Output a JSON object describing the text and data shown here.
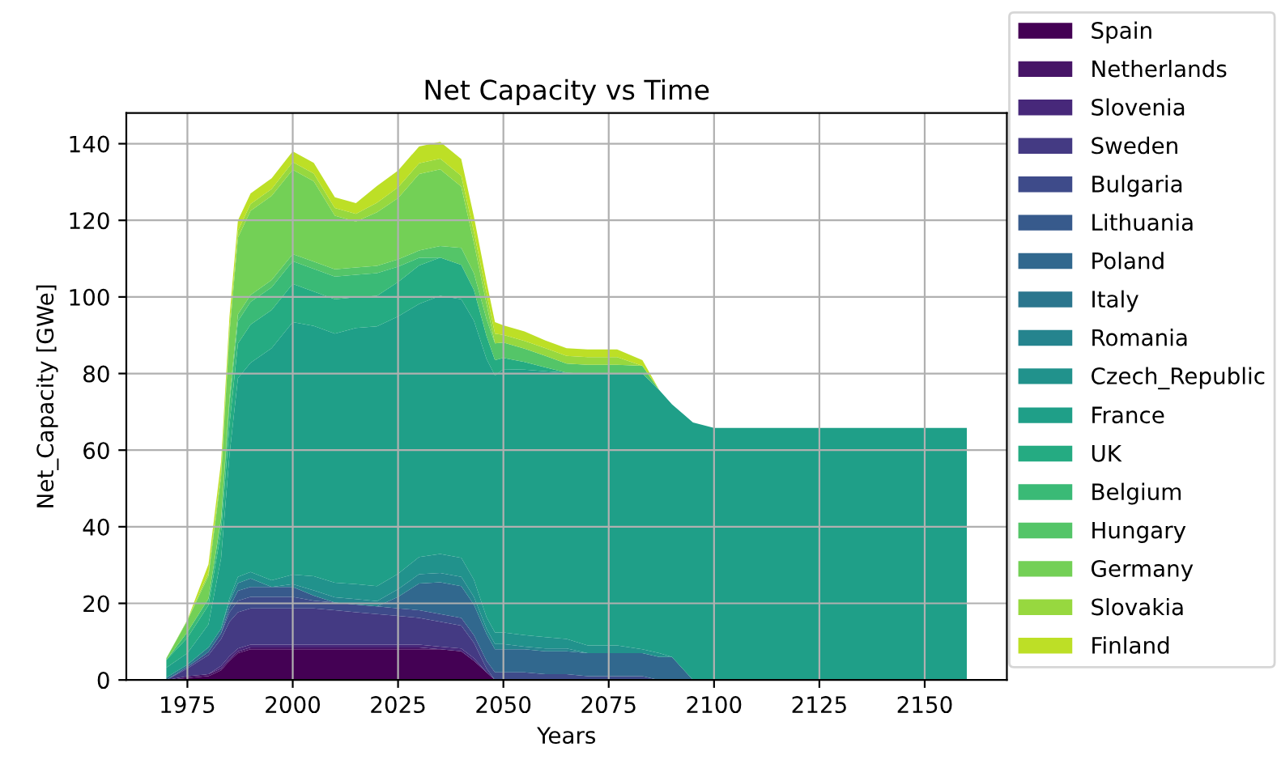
{
  "chart_data": {
    "type": "area",
    "stacked": true,
    "title": "Net Capacity vs Time",
    "xlabel": "Years",
    "ylabel": "Net_Capacity [GWe]",
    "x": [
      1970,
      1975,
      1980,
      1983,
      1985,
      1987,
      1990,
      1995,
      2000,
      2005,
      2010,
      2015,
      2020,
      2025,
      2030,
      2035,
      2040,
      2043,
      2046,
      2048,
      2050,
      2055,
      2060,
      2065,
      2070,
      2077,
      2083,
      2087,
      2090,
      2095,
      2100,
      2160
    ],
    "series": [
      {
        "name": "Spain",
        "color": "#440154",
        "values": [
          0,
          0.5,
          1,
          2.5,
          5,
          7,
          8,
          8,
          8,
          8,
          8,
          8,
          8,
          8,
          8,
          8,
          7.5,
          5,
          2,
          0,
          0,
          0,
          0,
          0,
          0,
          0,
          0,
          0,
          0,
          0,
          0,
          0
        ]
      },
      {
        "name": "Netherlands",
        "color": "#471567",
        "values": [
          0,
          0.5,
          0.5,
          0.5,
          0.5,
          0.5,
          0.5,
          0.5,
          0.5,
          0.5,
          0.5,
          0.5,
          0.5,
          0.5,
          0.5,
          0,
          0,
          0,
          0,
          0,
          0,
          0,
          0,
          0,
          0,
          0,
          0,
          0,
          0,
          0,
          0,
          0
        ]
      },
      {
        "name": "Slovenia",
        "color": "#47287a",
        "values": [
          0,
          0,
          0,
          0.7,
          0.7,
          0.7,
          0.7,
          0.7,
          0.7,
          0.7,
          0.7,
          0.7,
          0.7,
          0.7,
          0.7,
          0.7,
          0.7,
          0.7,
          0,
          0,
          0,
          0,
          0,
          0,
          0,
          0,
          0,
          0,
          0,
          0,
          0,
          0
        ]
      },
      {
        "name": "Sweden",
        "color": "#443a83",
        "values": [
          0,
          2,
          5,
          7,
          9,
          9.5,
          9.5,
          9.5,
          9.5,
          9.5,
          9,
          8.5,
          8,
          7.5,
          7,
          6.5,
          6,
          4,
          1,
          0,
          0,
          0,
          0,
          0,
          0,
          0,
          0,
          0,
          0,
          0,
          0,
          0
        ]
      },
      {
        "name": "Bulgaria",
        "color": "#3e4b8a",
        "values": [
          0,
          0.4,
          0.8,
          1.5,
          2.5,
          3,
          3,
          3,
          3,
          2,
          2,
          2,
          2,
          2,
          2,
          2,
          2,
          2,
          2,
          2,
          2,
          2,
          1.5,
          1.5,
          1,
          1,
          1,
          0,
          0,
          0,
          0,
          0
        ]
      },
      {
        "name": "Lithuania",
        "color": "#375a8c",
        "values": [
          0,
          0,
          0,
          0,
          1.3,
          2.6,
          2.6,
          2.6,
          2.6,
          1.3,
          0,
          0,
          0,
          0,
          0,
          0,
          0,
          0,
          0,
          0,
          0,
          0,
          0,
          0,
          0,
          0,
          0,
          0,
          0,
          0,
          0,
          0
        ]
      },
      {
        "name": "Poland",
        "color": "#31688e",
        "values": [
          0,
          0,
          0,
          0,
          0,
          0,
          0,
          0,
          0,
          0,
          0,
          0,
          0,
          3,
          7,
          8.3,
          8.3,
          8,
          7,
          6,
          6,
          6,
          6,
          6,
          6,
          6,
          6,
          6,
          6,
          0,
          0,
          0
        ]
      },
      {
        "name": "Italy",
        "color": "#2b768e",
        "values": [
          0.6,
          0.6,
          1.2,
          1.2,
          1.5,
          2,
          2.2,
          0,
          0,
          0,
          0,
          0,
          0,
          0,
          0,
          0,
          0,
          0,
          0,
          0,
          0,
          0,
          0,
          0,
          0,
          0,
          0,
          0,
          0,
          0,
          0,
          0
        ]
      },
      {
        "name": "Romania",
        "color": "#25848e",
        "values": [
          0,
          0,
          0,
          0,
          0,
          0,
          0,
          0,
          0.7,
          1.4,
          1.4,
          1.4,
          1.4,
          2,
          2.4,
          2.4,
          2.4,
          2,
          1.4,
          1.4,
          1.4,
          0.7,
          0.7,
          0.7,
          0,
          0,
          0,
          0,
          0,
          0,
          0,
          0
        ]
      },
      {
        "name": "Czech_Republic",
        "color": "#21928c",
        "values": [
          0,
          0,
          0,
          0,
          0.8,
          1.6,
          1.7,
          1.7,
          2.5,
          3.7,
          3.8,
          3.9,
          3.9,
          4,
          4.5,
          5,
          5,
          4.5,
          3,
          3,
          3,
          3,
          3,
          2.5,
          2,
          2,
          1,
          1,
          0,
          0,
          0,
          0
        ]
      },
      {
        "name": "France",
        "color": "#1f9f88",
        "values": [
          2.6,
          3,
          6,
          18.4,
          37.5,
          51.9,
          54.6,
          60.6,
          65.9,
          65.3,
          65,
          66.9,
          67.8,
          67.2,
          66.1,
          67.4,
          67.5,
          67.6,
          67.4,
          67.1,
          68.7,
          69.3,
          69.4,
          69.5,
          70.9,
          70.9,
          72,
          68.7,
          66,
          67.2,
          65.8,
          65.8
        ]
      },
      {
        "name": "UK",
        "color": "#25ab82",
        "values": [
          2,
          4,
          5,
          7,
          8,
          9,
          10,
          10,
          10,
          9,
          9,
          8,
          8,
          9,
          10,
          10,
          9,
          8,
          6,
          4,
          3,
          2,
          1,
          0,
          0,
          0,
          0,
          0,
          0,
          0,
          0,
          0
        ]
      },
      {
        "name": "Belgium",
        "color": "#3aba76",
        "values": [
          0,
          1.5,
          1.7,
          3,
          5.5,
          5.9,
          5.9,
          5.9,
          5.9,
          5.9,
          5.9,
          5.9,
          5.9,
          4,
          2,
          0,
          0,
          0,
          0,
          0,
          0,
          0,
          0,
          0,
          0,
          0,
          0,
          0,
          0,
          0,
          0,
          0
        ]
      },
      {
        "name": "Hungary",
        "color": "#54c568",
        "values": [
          0,
          0,
          0,
          0.4,
          1.4,
          1.8,
          1.8,
          1.9,
          1.9,
          1.9,
          1.9,
          1.9,
          1.9,
          1.9,
          1.9,
          3,
          4.4,
          4.4,
          4.4,
          4.4,
          4,
          3.5,
          3,
          2.4,
          2.4,
          2.4,
          2,
          0,
          0,
          0,
          0,
          0
        ]
      },
      {
        "name": "Germany",
        "color": "#73d056",
        "values": [
          0.5,
          3,
          6,
          11,
          17,
          20,
          22,
          22,
          22,
          21,
          14,
          12,
          14,
          16,
          20,
          20,
          16,
          8,
          4,
          0,
          0,
          0,
          0,
          0,
          0,
          0,
          0,
          0,
          0,
          0,
          0,
          0
        ]
      },
      {
        "name": "Slovakia",
        "color": "#97d83f",
        "values": [
          0,
          0.2,
          0.8,
          1.2,
          1.6,
          1.8,
          1.8,
          1.8,
          2,
          2,
          2,
          2,
          2.5,
          2.8,
          2.8,
          2.8,
          2.8,
          2.8,
          2.8,
          2.5,
          2,
          2,
          2,
          2,
          2,
          2,
          0,
          0,
          0,
          0,
          0,
          0
        ]
      },
      {
        "name": "Finland",
        "color": "#bddf26",
        "values": [
          0,
          0,
          2.2,
          2.6,
          2.7,
          2.7,
          2.7,
          2.8,
          2.8,
          2.8,
          2.8,
          2.8,
          4.4,
          4.4,
          4.4,
          4.4,
          4.4,
          4,
          3,
          3,
          2.5,
          2.5,
          2,
          2,
          2,
          2,
          1.5,
          0,
          0,
          0,
          0,
          0
        ]
      }
    ],
    "xlim": [
      1960.5,
      2169.5
    ],
    "ylim": [
      0,
      148
    ],
    "xticks": [
      1975,
      2000,
      2025,
      2050,
      2075,
      2100,
      2125,
      2150
    ],
    "yticks": [
      0,
      20,
      40,
      60,
      80,
      100,
      120,
      140
    ],
    "grid": true,
    "legend": "right"
  }
}
